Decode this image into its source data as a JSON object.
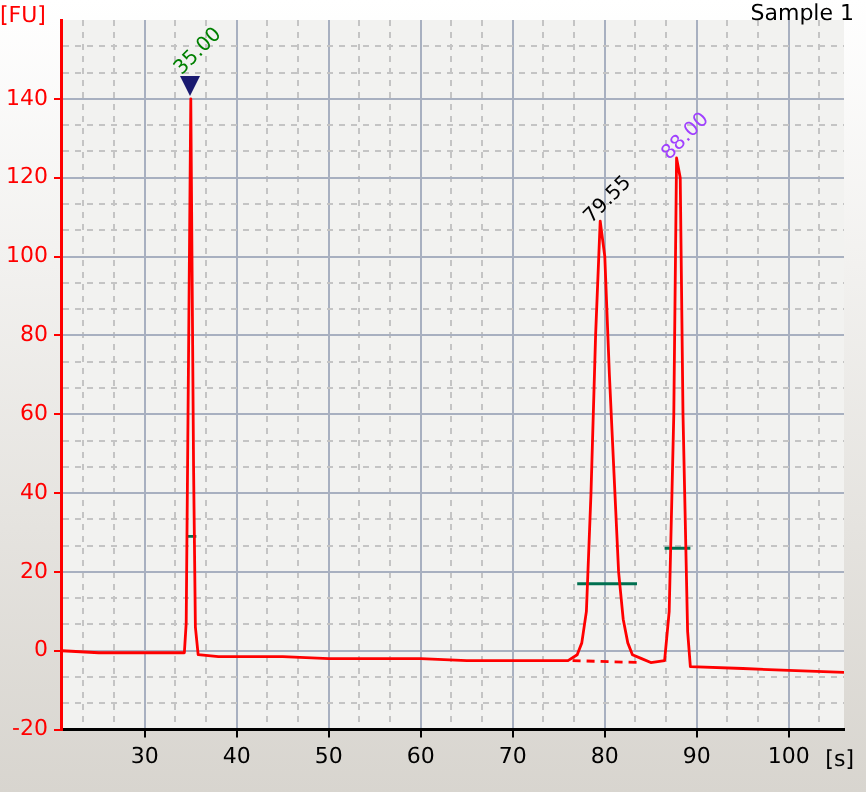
{
  "chart_data": {
    "type": "line",
    "title": "Sample 1",
    "xlabel": "[s]",
    "ylabel": "[FU]",
    "xlim": [
      21,
      106
    ],
    "ylim": [
      -20,
      160
    ],
    "xticks": [
      {
        "value": 23.33,
        "label": null
      },
      {
        "value": 26.67,
        "label": null
      },
      30,
      {
        "value": 33.33,
        "label": null
      },
      {
        "value": 36.67,
        "label": null
      },
      40,
      {
        "value": 43.33,
        "label": null
      },
      {
        "value": 46.67,
        "label": null
      },
      50,
      {
        "value": 53.33,
        "label": null
      },
      {
        "value": 56.67,
        "label": null
      },
      60,
      {
        "value": 63.33,
        "label": null
      },
      {
        "value": 66.67,
        "label": null
      },
      70,
      {
        "value": 73.33,
        "label": null
      },
      {
        "value": 76.67,
        "label": null
      },
      80,
      {
        "value": 83.33,
        "label": null
      },
      {
        "value": 86.67,
        "label": null
      },
      90,
      {
        "value": 93.33,
        "label": null
      },
      {
        "value": 96.67,
        "label": null
      },
      100,
      {
        "value": 103.33,
        "label": null
      }
    ],
    "yticks": [
      -20,
      {
        "value": -13.33,
        "label": null
      },
      {
        "value": -6.67,
        "label": null
      },
      0,
      {
        "value": 6.67,
        "label": null
      },
      {
        "value": 13.33,
        "label": null
      },
      20,
      {
        "value": 26.67,
        "label": null
      },
      {
        "value": 33.33,
        "label": null
      },
      40,
      {
        "value": 46.67,
        "label": null
      },
      {
        "value": 53.33,
        "label": null
      },
      60,
      {
        "value": 66.67,
        "label": null
      },
      {
        "value": 73.33,
        "label": null
      },
      80,
      {
        "value": 86.67,
        "label": null
      },
      {
        "value": 93.33,
        "label": null
      },
      100,
      {
        "value": 106.67,
        "label": null
      },
      {
        "value": 113.33,
        "label": null
      },
      120,
      {
        "value": 126.67,
        "label": null
      },
      {
        "value": 133.33,
        "label": null
      },
      140,
      {
        "value": 146.67,
        "label": null
      },
      {
        "value": 153.33,
        "label": null
      }
    ],
    "grid": true,
    "legend": false,
    "marker": "none",
    "annotations": [
      {
        "text": "35.00",
        "x": 35,
        "y": 140
      },
      {
        "text": "79.55",
        "x": 79.55,
        "y": 109
      },
      {
        "text": "88.00",
        "x": 88,
        "y": 125
      }
    ],
    "series": [
      {
        "color": "#ff0000",
        "x": [
          21,
          25,
          30,
          34.3,
          34.5,
          34.7,
          35,
          35.3,
          35.5,
          35.8,
          38,
          45,
          50,
          56,
          60,
          65,
          70,
          76,
          77,
          77.5,
          78,
          78.5,
          79,
          79.5,
          80,
          80.5,
          81,
          81.5,
          82,
          82.5,
          83,
          84,
          85,
          86.5,
          87,
          87.5,
          87.8,
          88.2,
          88.5,
          89,
          89.3,
          95,
          100,
          106
        ],
        "values": [
          0,
          -0.5,
          -0.5,
          -0.5,
          7,
          60,
          140,
          47,
          6,
          -1,
          -1.5,
          -1.5,
          -2,
          -2,
          -2,
          -2.5,
          -2.5,
          -2.5,
          -1,
          2,
          10,
          40,
          80,
          109,
          100,
          70,
          45,
          20,
          8,
          2,
          -1,
          -2,
          -3,
          -2.5,
          10,
          60,
          125,
          120,
          60,
          5,
          -4,
          -4.5,
          -5,
          -5.5
        ]
      },
      {
        "color": "#ff0000",
        "line_style": "dashed",
        "x": [
          76.5,
          84
        ],
        "values": [
          -2.5,
          -3
        ]
      },
      {
        "color": "#007050",
        "x": [
          34.5,
          35.6
        ],
        "values": [
          29,
          29
        ]
      },
      {
        "color": "#007050",
        "x": [
          77,
          83.5
        ],
        "values": [
          17,
          17
        ]
      },
      {
        "color": "#007050",
        "x": [
          86.5,
          89.3
        ],
        "values": [
          26,
          26
        ]
      }
    ]
  }
}
